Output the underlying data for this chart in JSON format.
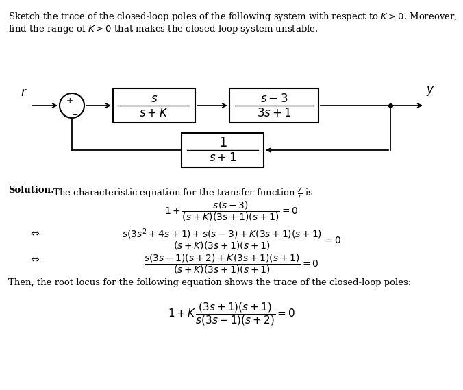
{
  "bg_color": "#ffffff",
  "title_line1": "Sketch the trace of the closed-loop poles of the following system with respect to $K > 0$. Moreover,",
  "title_line2": "find the range of $K > 0$ that makes the closed-loop system unstable.",
  "solution_bold": "Solution.",
  "solution_rest": " The characteristic equation for the transfer function $\\frac{y}{r}$ is",
  "then_text": "Then, the root locus for the following equation shows the trace of the closed-loop poles:",
  "fontsize_text": 9.5,
  "fontsize_math": 10.0,
  "fontsize_block": 12.0
}
